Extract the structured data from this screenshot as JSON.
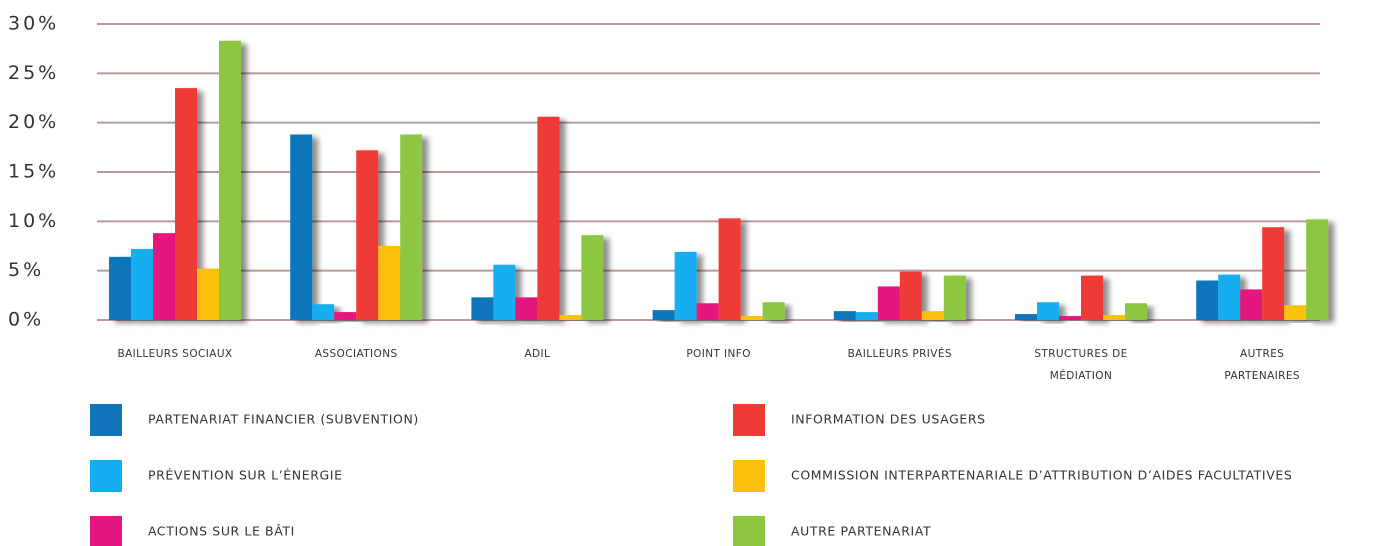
{
  "chart_data": {
    "type": "bar",
    "categories": [
      "BAILLEURS SOCIAUX",
      "ASSOCIATIONS",
      "ADIL",
      "POINT INFO",
      "BAILLEURS PRIVÉS",
      "STRUCTURES DE\nMÉDIATION",
      "AUTRES\nPARTENAIRES"
    ],
    "series": [
      {
        "name": "PARTENARIAT FINANCIER (SUBVENTION)",
        "color": "#0f74bc",
        "values": [
          6.4,
          18.8,
          2.3,
          1.0,
          0.9,
          0.6,
          4.0
        ]
      },
      {
        "name": "PRÉVENTION SUR L’ÉNERGIE",
        "color": "#12aeef",
        "values": [
          7.2,
          1.6,
          5.6,
          6.9,
          0.8,
          1.8,
          4.6
        ]
      },
      {
        "name": "ACTIONS SUR LE BÂTI",
        "color": "#e6157f",
        "values": [
          8.8,
          0.8,
          2.3,
          1.7,
          3.4,
          0.4,
          3.1
        ]
      },
      {
        "name": "INFORMATION DES USAGERS",
        "color": "#ee3a34",
        "values": [
          23.5,
          17.2,
          20.6,
          10.3,
          4.9,
          4.5,
          9.4
        ]
      },
      {
        "name": "COMMISSION INTERPARTENARIALE D’ATTRIBUTION D’AIDES FACULTATIVES",
        "color": "#fcc10f",
        "values": [
          5.2,
          7.5,
          0.5,
          0.4,
          0.9,
          0.5,
          1.5
        ]
      },
      {
        "name": "AUTRE PARTENARIAT",
        "color": "#8dc63f",
        "values": [
          28.3,
          18.8,
          8.6,
          1.8,
          4.5,
          1.7,
          10.2
        ]
      }
    ],
    "ylim": [
      0,
      30
    ],
    "yticks": [
      {
        "value": 0,
        "label": "0%"
      },
      {
        "value": 5,
        "label": "5%"
      },
      {
        "value": 10,
        "label": "10%"
      },
      {
        "value": 15,
        "label": "15%"
      },
      {
        "value": 20,
        "label": "20%"
      },
      {
        "value": 25,
        "label": "25%"
      },
      {
        "value": 30,
        "label": "30%"
      }
    ],
    "grid": true
  }
}
